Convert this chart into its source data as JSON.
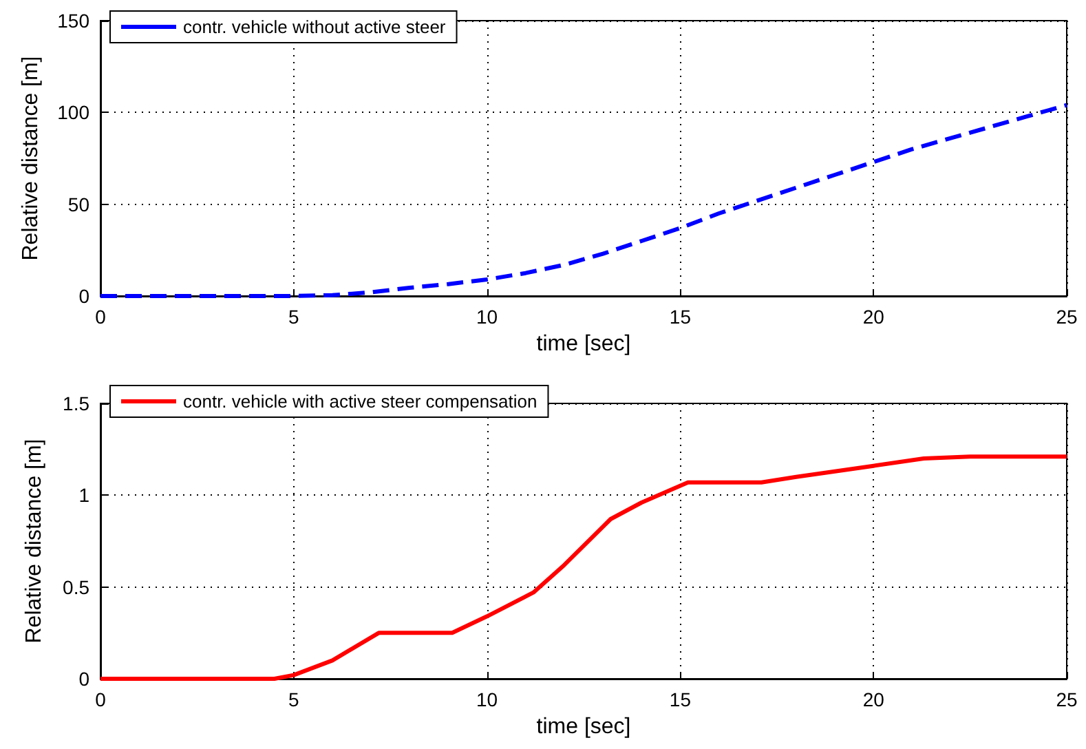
{
  "chart_data": [
    {
      "type": "line",
      "xlabel": "time [sec]",
      "ylabel": "Relative distance [m]",
      "xlim": [
        0,
        25
      ],
      "xticks": [
        0,
        5,
        10,
        15,
        20,
        25
      ],
      "ylim": [
        0,
        150
      ],
      "yticks": [
        0,
        50,
        100,
        150
      ],
      "grid": true,
      "legend": "top left",
      "marker": "none",
      "line_style": "dashed",
      "series": [
        {
          "name": "contr. vehicle without active steer",
          "color": "#0000ff",
          "x": [
            0,
            1,
            2,
            3,
            4,
            5,
            6,
            7,
            8,
            9,
            10,
            11,
            12,
            13,
            14,
            15,
            16,
            17,
            18,
            19,
            20,
            21,
            22,
            23,
            24,
            25
          ],
          "values": [
            0,
            0,
            0,
            0,
            0,
            0,
            0.5,
            2,
            4.5,
            6.5,
            9,
            12.5,
            17,
            23,
            30,
            37,
            45,
            52,
            59,
            66,
            73,
            80,
            86,
            92,
            98,
            104
          ]
        }
      ]
    },
    {
      "type": "line",
      "xlabel": "time [sec]",
      "ylabel": "Relative distance [m]",
      "xlim": [
        0,
        25
      ],
      "xticks": [
        0,
        5,
        10,
        15,
        20,
        25
      ],
      "ylim": [
        0,
        1.5
      ],
      "yticks": [
        0,
        0.5,
        1,
        1.5
      ],
      "grid": true,
      "legend": "top left",
      "marker": "none",
      "line_style": "solid",
      "series": [
        {
          "name": "contr. vehicle with active steer compensation",
          "color": "#ff0000",
          "x": [
            0,
            4.5,
            5,
            6,
            7.2,
            9.1,
            10,
            11.2,
            12,
            13.2,
            14,
            15.2,
            17.1,
            18,
            19,
            20,
            21.3,
            22.5,
            25
          ],
          "values": [
            0,
            0,
            0.02,
            0.1,
            0.25,
            0.25,
            0.34,
            0.47,
            0.62,
            0.87,
            0.96,
            1.07,
            1.07,
            1.1,
            1.13,
            1.16,
            1.2,
            1.21,
            1.21
          ]
        }
      ]
    }
  ]
}
